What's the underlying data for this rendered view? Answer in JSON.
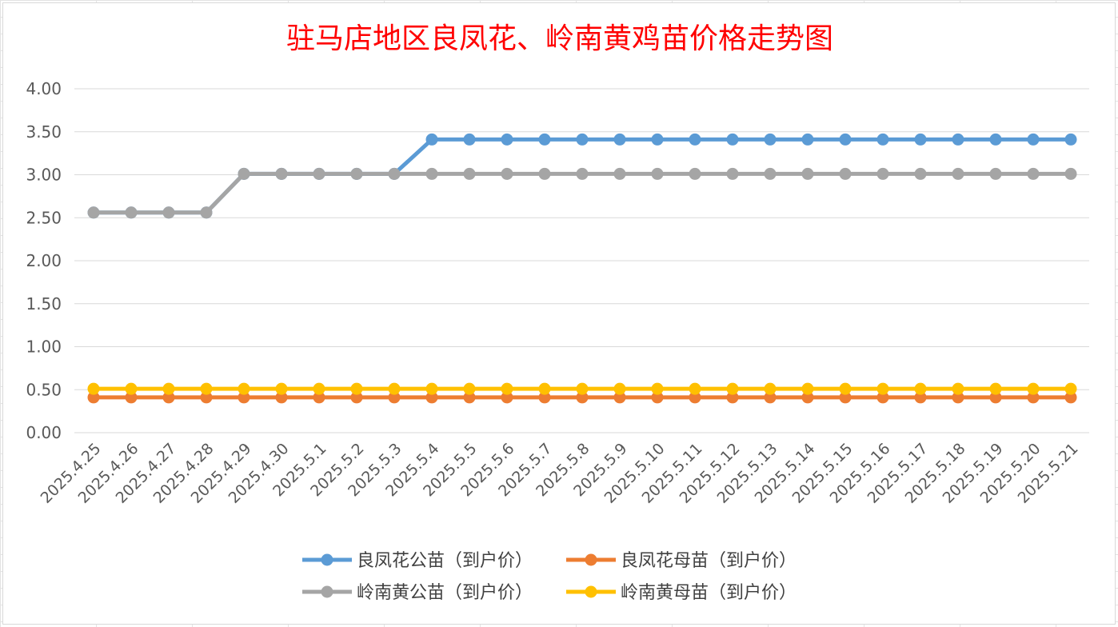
{
  "chart_data": {
    "type": "line",
    "title": "驻马店地区良凤花、岭南黄鸡苗价格走势图",
    "xlabel": "",
    "ylabel": "",
    "ylim": [
      0,
      4
    ],
    "yticks": [
      "0.00",
      "0.50",
      "1.00",
      "1.50",
      "2.00",
      "2.50",
      "3.00",
      "3.50",
      "4.00"
    ],
    "grid": "horizontal",
    "legend_position": "bottom",
    "categories": [
      "2025.4.25",
      "2025.4.26",
      "2025.4.27",
      "2025.4.28",
      "2025.4.29",
      "2025.4.30",
      "2025.5.1",
      "2025.5.2",
      "2025.5.3",
      "2025.5.4",
      "2025.5.5",
      "2025.5.6",
      "2025.5.7",
      "2025.5.8",
      "2025.5.9",
      "2025.5.10",
      "2025.5.11",
      "2025.5.12",
      "2025.5.13",
      "2025.5.14",
      "2025.5.15",
      "2025.5.16",
      "2025.5.17",
      "2025.5.18",
      "2025.5.19",
      "2025.5.20",
      "2025.5.21"
    ],
    "series": [
      {
        "name": "良凤花公苗（到户价）",
        "color": "#5b9bd5",
        "values": [
          2.56,
          2.56,
          2.56,
          2.56,
          3.01,
          3.01,
          3.01,
          3.01,
          3.01,
          3.41,
          3.41,
          3.41,
          3.41,
          3.41,
          3.41,
          3.41,
          3.41,
          3.41,
          3.41,
          3.41,
          3.41,
          3.41,
          3.41,
          3.41,
          3.41,
          3.41,
          3.41
        ]
      },
      {
        "name": "良凤花母苗（到户价）",
        "color": "#ed7d31",
        "values": [
          0.41,
          0.41,
          0.41,
          0.41,
          0.41,
          0.41,
          0.41,
          0.41,
          0.41,
          0.41,
          0.41,
          0.41,
          0.41,
          0.41,
          0.41,
          0.41,
          0.41,
          0.41,
          0.41,
          0.41,
          0.41,
          0.41,
          0.41,
          0.41,
          0.41,
          0.41,
          0.41
        ]
      },
      {
        "name": "岭南黄公苗（到户价）",
        "color": "#a5a5a5",
        "values": [
          2.56,
          2.56,
          2.56,
          2.56,
          3.01,
          3.01,
          3.01,
          3.01,
          3.01,
          3.01,
          3.01,
          3.01,
          3.01,
          3.01,
          3.01,
          3.01,
          3.01,
          3.01,
          3.01,
          3.01,
          3.01,
          3.01,
          3.01,
          3.01,
          3.01,
          3.01,
          3.01
        ]
      },
      {
        "name": "岭南黄母苗（到户价）",
        "color": "#ffc000",
        "values": [
          0.51,
          0.51,
          0.51,
          0.51,
          0.51,
          0.51,
          0.51,
          0.51,
          0.51,
          0.51,
          0.51,
          0.51,
          0.51,
          0.51,
          0.51,
          0.51,
          0.51,
          0.51,
          0.51,
          0.51,
          0.51,
          0.51,
          0.51,
          0.51,
          0.51,
          0.51,
          0.51
        ]
      }
    ]
  }
}
